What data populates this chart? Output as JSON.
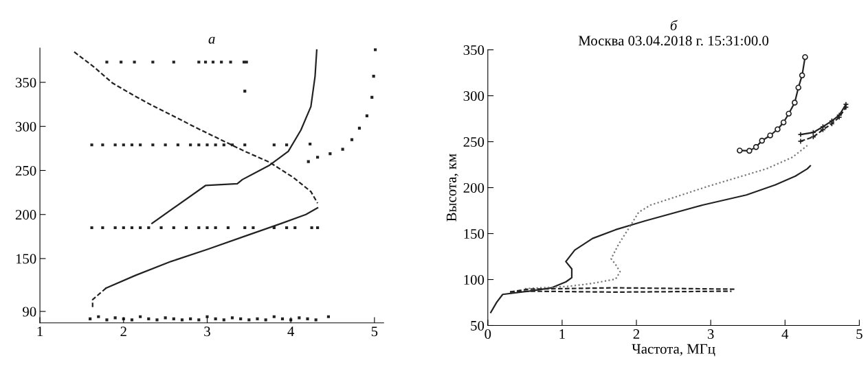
{
  "chart_data": [
    {
      "type": "line",
      "title": "а",
      "xlim": [
        1,
        5.11
      ],
      "ylim": [
        77,
        389
      ],
      "xticks": [
        1,
        2,
        3,
        4,
        5
      ],
      "yticks": [
        90,
        150,
        200,
        250,
        300,
        350
      ],
      "grid": false,
      "series": [
        {
          "type": "scatter",
          "color": "#222222",
          "marker": "square",
          "x": [
            1.8,
            1.97,
            2.13,
            2.35,
            2.6,
            2.9,
            2.98,
            3.07,
            3.17,
            3.28,
            3.44,
            3.47,
            3.45,
            1.62,
            1.75,
            1.9,
            2.0,
            2.1,
            2.2,
            2.35,
            2.5,
            2.65,
            2.8,
            2.9,
            3.0,
            3.1,
            3.2,
            3.3,
            3.45,
            3.8,
            3.95,
            4.23,
            1.62,
            1.75,
            1.9,
            2.0,
            2.1,
            2.2,
            2.3,
            2.45,
            2.6,
            2.75,
            2.9,
            3.0,
            3.1,
            3.25,
            3.45,
            3.55,
            3.8,
            3.95,
            4.05,
            4.25,
            4.32,
            1.6,
            1.7,
            1.8,
            1.9,
            2.0,
            2.1,
            2.2,
            2.3,
            2.4,
            2.5,
            2.6,
            2.7,
            2.8,
            2.9,
            3.0,
            3.1,
            3.2,
            3.3,
            3.4,
            3.5,
            3.6,
            3.7,
            3.8,
            3.9,
            4.0,
            4.1,
            4.2,
            4.3,
            4.45,
            4.21,
            4.32,
            4.47,
            4.62,
            4.73,
            4.82,
            4.91,
            4.97,
            4.99,
            5.01
          ],
          "values": [
            373,
            373,
            373,
            373,
            373,
            373,
            373,
            373,
            373,
            373,
            373,
            373,
            340,
            279,
            279,
            279,
            279,
            279,
            279,
            279,
            279,
            279,
            279,
            279,
            279,
            279,
            279,
            279,
            279,
            279,
            279,
            280,
            185,
            185,
            185,
            185,
            185,
            185,
            185,
            185,
            185,
            185,
            185,
            185,
            185,
            185,
            185,
            185,
            185,
            185,
            185,
            185,
            185,
            81.6,
            84,
            80.4,
            82.8,
            81.6,
            80.4,
            84,
            81.6,
            80.4,
            82.8,
            81.6,
            80.4,
            81.6,
            80.4,
            84,
            81.6,
            80.4,
            82.8,
            81.6,
            80.4,
            81.6,
            80.4,
            84,
            81.6,
            80.4,
            82.8,
            81.6,
            80.4,
            84,
            260,
            265,
            269,
            274,
            285,
            298,
            312,
            333,
            357,
            387
          ]
        },
        {
          "type": "line",
          "color": "#222222",
          "line_style": "dashed",
          "x": [
            1.41,
            1.64,
            1.87,
            2.11,
            2.34,
            2.57,
            2.87,
            3.16,
            3.45,
            3.74,
            4.03,
            4.24,
            4.32
          ],
          "values": [
            384.5,
            367.9,
            349,
            335.8,
            323.8,
            313,
            298.4,
            285,
            271.7,
            259.6,
            242,
            226,
            212.8
          ]
        },
        {
          "type": "line",
          "color": "#222222",
          "line_style": "solid",
          "x": [
            4.32,
            4.18,
            3.89,
            3.45,
            3.01,
            2.57,
            2.14,
            1.79
          ],
          "values": [
            207.5,
            200,
            190,
            175.4,
            160.7,
            146.8,
            130.8,
            116.4
          ]
        },
        {
          "type": "line",
          "color": "#222222",
          "line_style": "dashed",
          "x": [
            1.79,
            1.63,
            1.63
          ],
          "values": [
            116.4,
            103.4,
            94
          ]
        },
        {
          "type": "line",
          "color": "#222222",
          "line_style": "solid",
          "x": [
            2.34,
            2.98,
            3.36,
            3.42,
            3.74,
            3.97,
            4.12,
            4.24,
            4.29,
            4.31
          ],
          "values": [
            190,
            232.9,
            235,
            239.6,
            255.6,
            271.7,
            295.7,
            322.5,
            357,
            386.6
          ]
        }
      ]
    },
    {
      "type": "line",
      "title": "б",
      "subtitle": "Москва 03.04.2018 г. 15:31:00.0",
      "xlabel": "Частота, МГц",
      "ylabel": "Высота, км",
      "xlim": [
        0,
        5
      ],
      "ylim": [
        50,
        350
      ],
      "xticks": [
        0,
        1,
        2,
        3,
        4,
        5
      ],
      "yticks": [
        50,
        100,
        150,
        200,
        250,
        300,
        350
      ],
      "grid": false,
      "series": [
        {
          "color": "#222222",
          "line_style": "solid",
          "x": [
            0.04,
            0.12,
            0.2,
            0.55,
            0.86,
            1.05,
            1.13,
            1.13,
            1.05,
            1.17,
            1.41,
            1.72,
            2.11,
            2.89,
            3.48,
            3.87,
            4.14,
            4.3,
            4.34
          ],
          "values": [
            64.2,
            75.3,
            83.8,
            87.3,
            91,
            97.4,
            102,
            111.6,
            119.5,
            132,
            144.7,
            154.2,
            163.7,
            181,
            192,
            203,
            212.6,
            220.5,
            223.7
          ]
        },
        {
          "color": "#777777",
          "line_style": "dotted",
          "x": [
            0.5,
            1.09,
            1.41,
            1.72,
            1.78,
            1.72,
            1.66,
            1.76,
            1.91,
            2.03,
            2.19,
            2.97,
            3.75,
            4.1,
            4.3
          ],
          "values": [
            90,
            92.6,
            95.8,
            100.5,
            108.4,
            116.3,
            122.6,
            138.4,
            157.4,
            173.2,
            181,
            201.6,
            220.5,
            233.1,
            245.8
          ]
        },
        {
          "color": "#222222",
          "line_style": "dashed",
          "x": [
            0.3,
            0.55,
            1.72,
            3.32
          ],
          "values": [
            86.5,
            89.5,
            91,
            89.5
          ]
        },
        {
          "color": "#222222",
          "line_style": "dashed",
          "x": [
            0.3,
            0.55,
            1.72,
            3.28
          ],
          "values": [
            86.5,
            87.3,
            86.3,
            87.3
          ]
        },
        {
          "color": "#222222",
          "line_style": "solid",
          "marker": "circle",
          "x": [
            3.39,
            3.52,
            3.61,
            3.69,
            3.8,
            3.9,
            3.98,
            4.05,
            4.13,
            4.18,
            4.23,
            4.27
          ],
          "values": [
            240.4,
            240.1,
            244.2,
            251.1,
            256.8,
            263.5,
            271,
            280.5,
            292.5,
            308.9,
            322.2,
            342.1
          ]
        },
        {
          "color": "#222222",
          "line_style": "solid",
          "marker": "cross",
          "x": [
            4.21,
            4.38,
            4.51,
            4.63,
            4.73,
            4.82
          ],
          "values": [
            257.8,
            260,
            266.3,
            272.6,
            278.9,
            290.6
          ]
        },
        {
          "color": "#222222",
          "line_style": "dashed",
          "marker": "cross",
          "x": [
            4.21,
            4.38,
            4.51,
            4.63,
            4.73,
            4.82
          ],
          "values": [
            250.5,
            255.2,
            263.1,
            269.5,
            276.7,
            287.5
          ]
        }
      ]
    }
  ]
}
